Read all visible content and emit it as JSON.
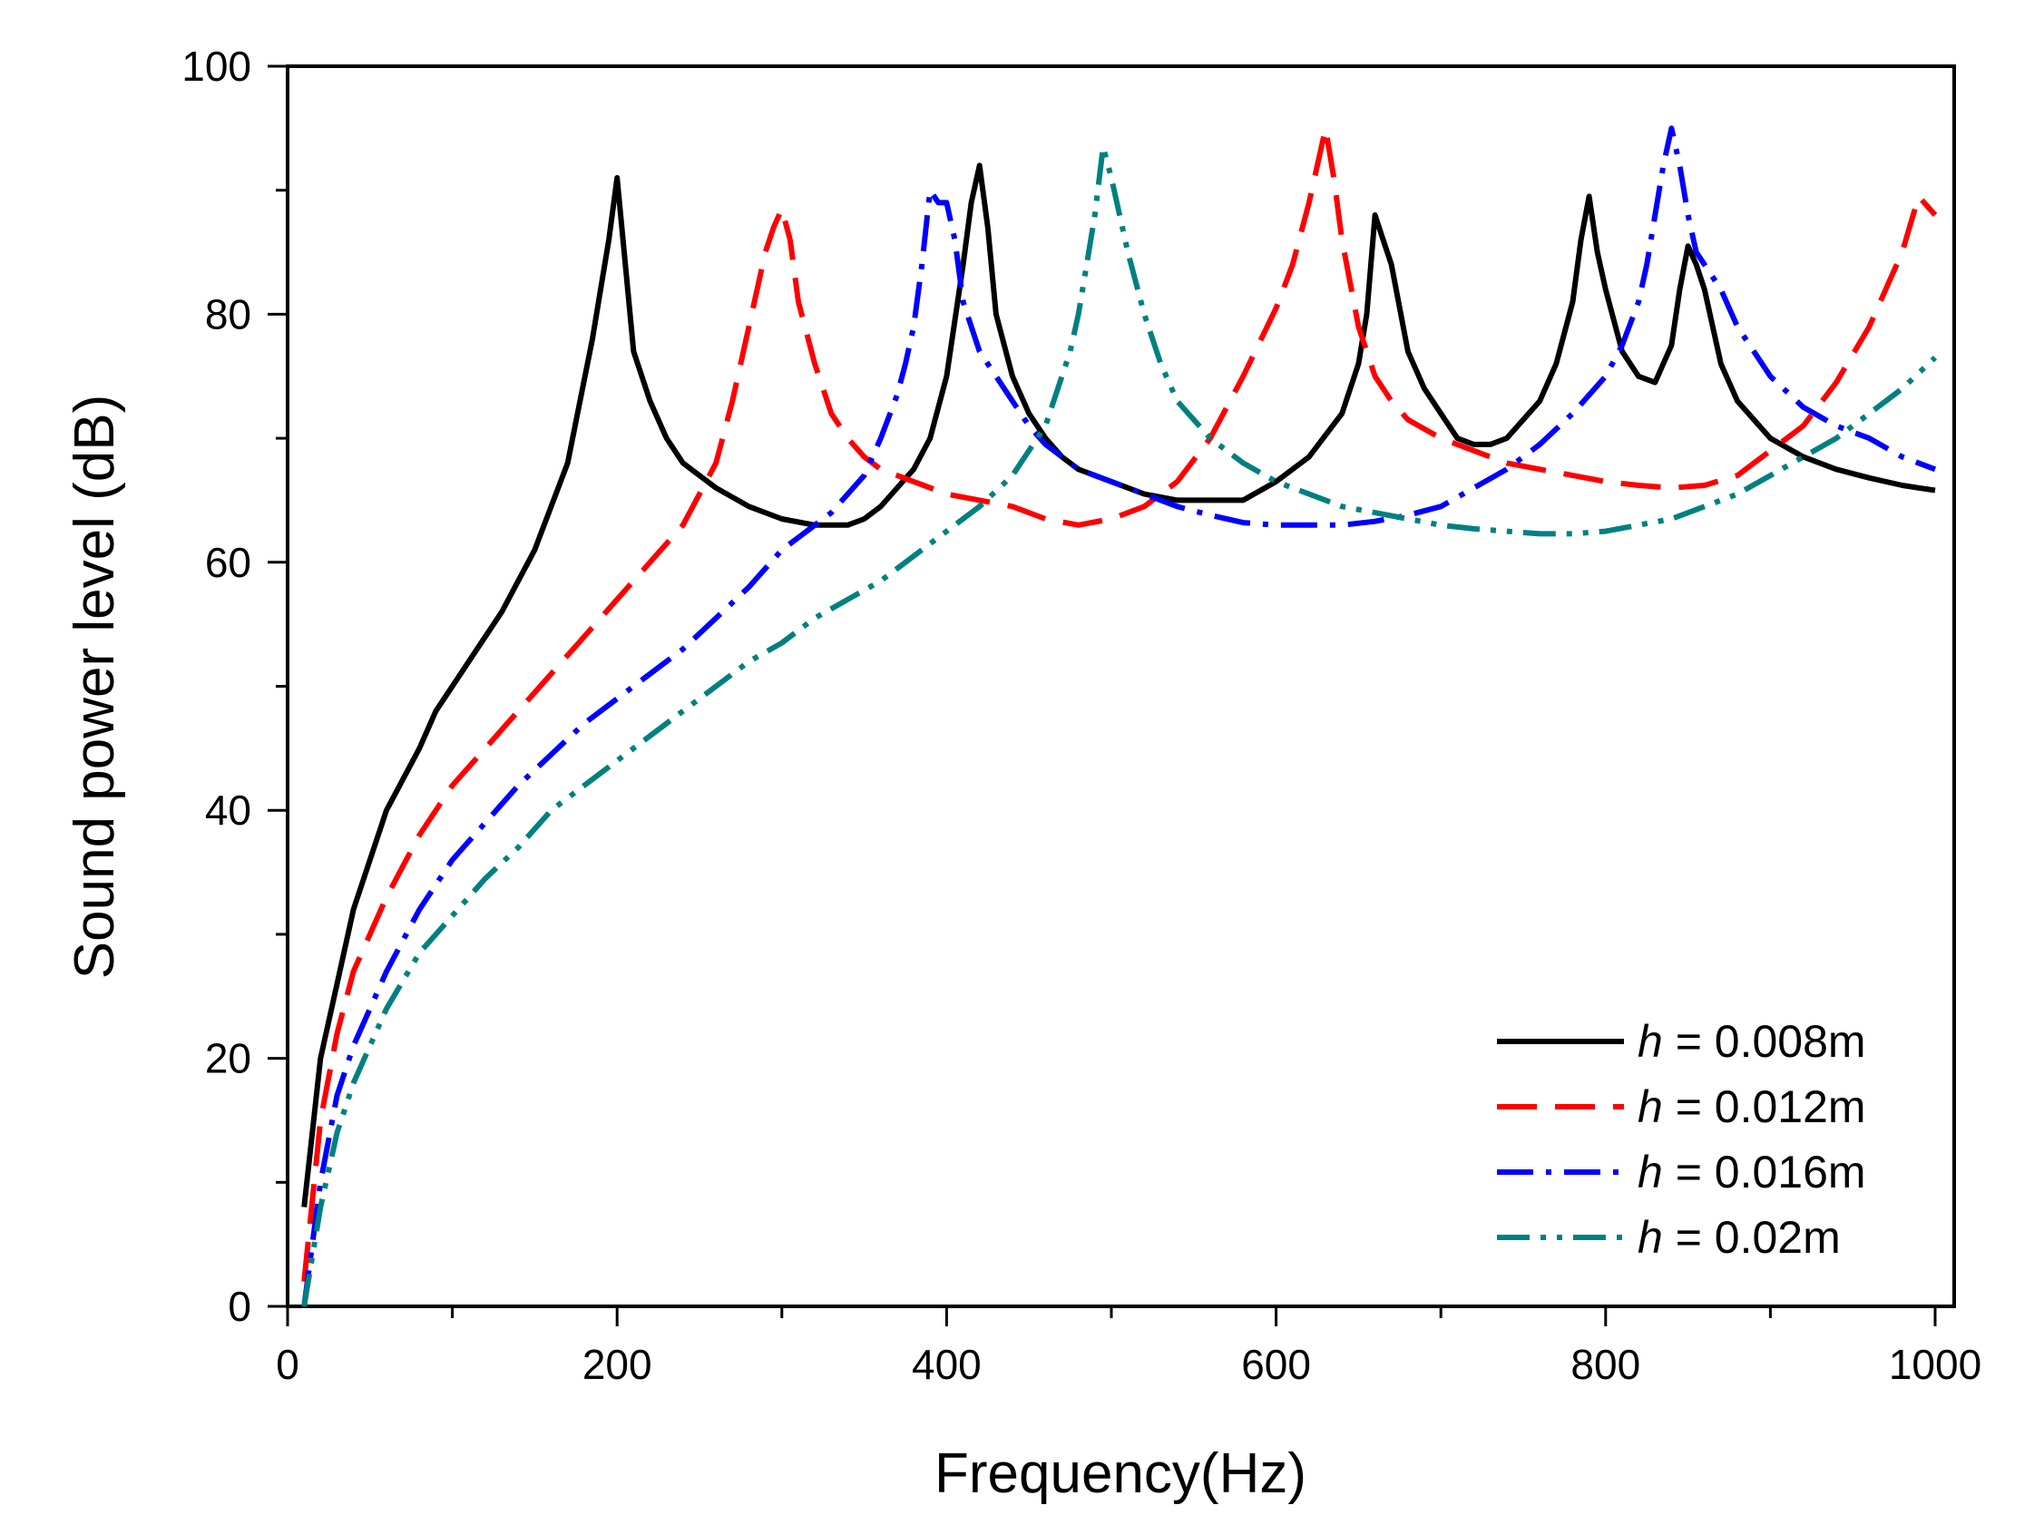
{
  "chart_data": {
    "type": "line",
    "title": "",
    "xlabel": "Frequency(Hz)",
    "ylabel": "Sound power level (dB)",
    "xlim": [
      0,
      1000
    ],
    "ylim": [
      0,
      100
    ],
    "x_ticks": [
      0,
      200,
      400,
      600,
      800,
      1000
    ],
    "y_ticks": [
      0,
      20,
      40,
      60,
      80,
      100
    ],
    "x_tick_labels": [
      "0",
      "200",
      "400",
      "600",
      "800",
      "1000"
    ],
    "y_tick_labels": [
      "0",
      "20",
      "40",
      "60",
      "80",
      "100"
    ],
    "grid": false,
    "legend_position": "bottom-right",
    "series": [
      {
        "name": "h = 0.008m",
        "label_var": "h",
        "label_rest": " = 0.008m",
        "color": "#000000",
        "dash": "solid",
        "x": [
          10,
          20,
          30,
          40,
          60,
          80,
          90,
          100,
          120,
          130,
          150,
          170,
          185,
          190,
          195,
          200,
          205,
          210,
          220,
          230,
          240,
          250,
          260,
          280,
          300,
          320,
          340,
          350,
          360,
          370,
          380,
          390,
          400,
          410,
          415,
          420,
          425,
          430,
          440,
          450,
          460,
          470,
          480,
          500,
          520,
          540,
          560,
          580,
          600,
          620,
          640,
          650,
          655,
          660,
          665,
          670,
          680,
          690,
          700,
          710,
          720,
          730,
          740,
          750,
          760,
          770,
          780,
          785,
          790,
          795,
          800,
          810,
          820,
          830,
          840,
          845,
          850,
          855,
          860,
          870,
          880,
          900,
          920,
          940,
          960,
          980,
          990,
          1000
        ],
        "y": [
          8,
          20,
          26,
          32,
          40,
          45,
          48,
          50,
          54,
          56,
          61,
          68,
          78,
          82,
          86,
          91,
          84,
          77,
          73,
          70,
          68,
          67,
          66,
          64.5,
          63.5,
          63,
          63,
          63.5,
          64.5,
          66,
          67.5,
          70,
          75,
          84,
          89,
          92,
          87,
          80,
          75,
          72,
          70,
          68.5,
          67.5,
          66.5,
          65.5,
          65,
          65,
          65,
          66.5,
          68.5,
          72,
          76,
          80,
          88,
          86,
          84,
          77,
          74,
          72,
          70,
          69.5,
          69.5,
          70,
          71.5,
          73,
          76,
          81,
          86,
          89.5,
          85,
          82,
          77,
          75,
          74.5,
          77.5,
          82,
          85.5,
          84,
          82,
          76,
          73,
          70,
          68.5,
          67.5,
          66.8,
          66.2,
          66,
          65.8
        ]
      },
      {
        "name": "h = 0.012m",
        "label_var": "h",
        "label_rest": " = 0.012m",
        "color": "#ff0000",
        "dash": "dashed",
        "x": [
          10,
          20,
          30,
          40,
          60,
          80,
          100,
          120,
          140,
          160,
          180,
          200,
          220,
          240,
          260,
          270,
          280,
          290,
          295,
          300,
          305,
          310,
          320,
          330,
          340,
          350,
          360,
          380,
          400,
          420,
          440,
          460,
          480,
          500,
          520,
          540,
          560,
          580,
          600,
          610,
          620,
          625,
          630,
          635,
          640,
          650,
          660,
          670,
          680,
          700,
          720,
          740,
          760,
          780,
          800,
          820,
          840,
          860,
          880,
          900,
          920,
          940,
          960,
          970,
          980,
          990,
          1000
        ],
        "y": [
          2,
          15,
          22,
          27,
          33,
          38,
          42,
          45,
          48,
          51,
          54,
          57,
          60,
          63,
          68,
          73,
          79,
          85,
          87,
          88.5,
          86,
          81,
          76,
          72,
          70,
          68.5,
          67.5,
          66.5,
          65.5,
          65,
          64.5,
          63.5,
          63,
          63.5,
          64.5,
          66.5,
          70,
          75,
          80.5,
          84,
          89,
          92,
          95,
          91,
          86,
          79,
          75,
          73,
          71.5,
          70,
          69,
          68,
          67.5,
          67,
          66.5,
          66.2,
          66,
          66.2,
          67,
          69,
          71,
          74.5,
          79,
          82,
          85,
          89.5,
          88
        ]
      },
      {
        "name": "h = 0.016m",
        "label_var": "h",
        "label_rest": " = 0.016m",
        "color": "#0000ff",
        "dash": "dashdot",
        "x": [
          10,
          20,
          30,
          40,
          60,
          80,
          100,
          120,
          140,
          160,
          180,
          200,
          220,
          240,
          260,
          280,
          300,
          310,
          320,
          330,
          340,
          350,
          360,
          370,
          375,
          380,
          385,
          390,
          395,
          400,
          405,
          410,
          420,
          430,
          440,
          450,
          460,
          480,
          500,
          520,
          540,
          560,
          580,
          600,
          620,
          640,
          660,
          680,
          700,
          720,
          740,
          760,
          780,
          800,
          810,
          820,
          825,
          830,
          835,
          840,
          845,
          850,
          855,
          860,
          870,
          880,
          890,
          900,
          920,
          940,
          960,
          980,
          1000
        ],
        "y": [
          0,
          10,
          17,
          21,
          27,
          32,
          36,
          39,
          42,
          44.5,
          47,
          49,
          51,
          53,
          55.5,
          58,
          61,
          62,
          63,
          64,
          65.5,
          67,
          70,
          73.5,
          76,
          79,
          84,
          90,
          89,
          89,
          86,
          81,
          77,
          75,
          73,
          71,
          69.5,
          67.5,
          66.5,
          65.5,
          64.5,
          63.8,
          63.2,
          63,
          63,
          63,
          63.3,
          63.8,
          64.5,
          66,
          67.5,
          69.5,
          72,
          75,
          77.5,
          81,
          84,
          88,
          92,
          95,
          92,
          88,
          85,
          84,
          82,
          79,
          77,
          75,
          72.5,
          71,
          70,
          68.5,
          67.5
        ]
      },
      {
        "name": "h = 0.02m",
        "label_var": "h",
        "label_rest": " = 0.02m",
        "color": "#008080",
        "dash": "dashdotdot",
        "x": [
          10,
          20,
          30,
          40,
          60,
          80,
          100,
          120,
          140,
          160,
          180,
          200,
          220,
          240,
          260,
          280,
          300,
          320,
          340,
          360,
          380,
          400,
          420,
          440,
          460,
          470,
          475,
          480,
          485,
          490,
          495,
          500,
          505,
          510,
          520,
          530,
          540,
          560,
          580,
          600,
          620,
          640,
          660,
          680,
          700,
          720,
          740,
          760,
          780,
          800,
          820,
          840,
          860,
          880,
          900,
          920,
          940,
          960,
          980,
          1000
        ],
        "y": [
          0,
          8,
          14,
          18,
          24,
          28.5,
          31.5,
          34.5,
          37,
          40,
          42,
          44,
          46,
          48,
          50,
          52,
          53.5,
          55.5,
          57,
          58.5,
          60.5,
          62.5,
          64.5,
          67,
          71,
          75,
          77,
          80,
          84,
          88,
          93.5,
          91,
          88,
          85,
          80,
          76,
          73,
          70,
          68,
          66.5,
          65.5,
          64.5,
          64,
          63.5,
          63,
          62.7,
          62.5,
          62.3,
          62.3,
          62.5,
          63,
          63.5,
          64.5,
          65.5,
          67,
          68.5,
          70,
          72,
          74,
          76.5
        ]
      }
    ]
  }
}
